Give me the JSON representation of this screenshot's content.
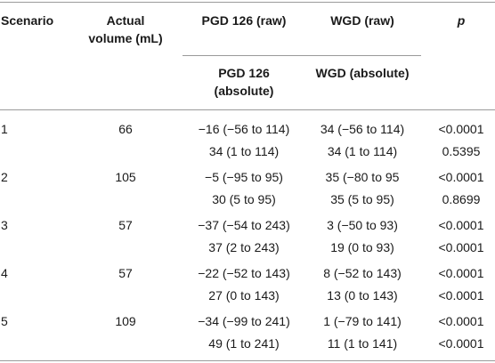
{
  "headers": {
    "scenario": "Scenario",
    "actual_volume": [
      "Actual",
      "volume (mL)"
    ],
    "pgd_raw": "PGD 126 (raw)",
    "wgd_raw": "WGD (raw)",
    "p": "p",
    "pgd_abs": [
      "PGD 126",
      "(absolute)"
    ],
    "wgd_abs": "WGD (absolute)"
  },
  "rows": [
    {
      "scenario": "1",
      "volume": "66",
      "raw": {
        "pgd": "−16 (−56 to 114)",
        "wgd": "34 (−56 to 114)",
        "p": "<0.0001"
      },
      "abs": {
        "pgd": "34 (1 to 114)",
        "wgd": "34 (1 to 114)",
        "p": "0.5395"
      }
    },
    {
      "scenario": "2",
      "volume": "105",
      "raw": {
        "pgd": "−5 (−95 to 95)",
        "wgd": "35 (−80 to 95",
        "p": "<0.0001"
      },
      "abs": {
        "pgd": "30 (5 to 95)",
        "wgd": "35 (5 to 95)",
        "p": "0.8699"
      }
    },
    {
      "scenario": "3",
      "volume": "57",
      "raw": {
        "pgd": "−37 (−54 to 243)",
        "wgd": "3 (−50 to 93)",
        "p": "<0.0001"
      },
      "abs": {
        "pgd": "37 (2 to 243)",
        "wgd": "19 (0 to 93)",
        "p": "<0.0001"
      }
    },
    {
      "scenario": "4",
      "volume": "57",
      "raw": {
        "pgd": "−22 (−52 to 143)",
        "wgd": "8 (−52 to 143)",
        "p": "<0.0001"
      },
      "abs": {
        "pgd": "27 (0 to 143)",
        "wgd": "13 (0 to 143)",
        "p": "<0.0001"
      }
    },
    {
      "scenario": "5",
      "volume": "109",
      "raw": {
        "pgd": "−34 (−99 to 241)",
        "wgd": "1 (−79 to 141)",
        "p": "<0.0001"
      },
      "abs": {
        "pgd": "49 (1 to 241)",
        "wgd": "11 (1 to 141)",
        "p": "<0.0001"
      }
    }
  ]
}
